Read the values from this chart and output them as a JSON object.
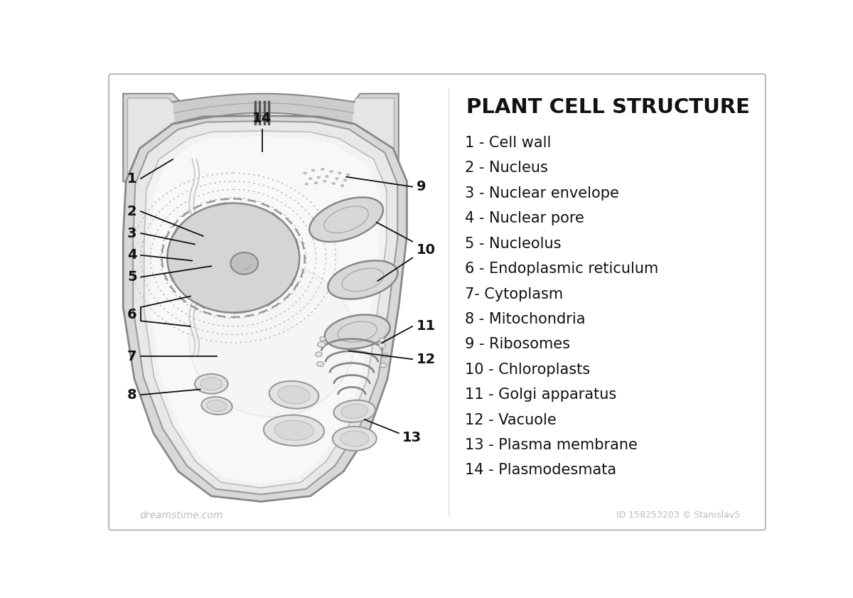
{
  "title": "PLANT CELL STRUCTURE",
  "bg_color": "#ffffff",
  "legend": [
    "1 - Cell wall",
    "2 - Nucleus",
    "3 - Nuclear envelope",
    "4 - Nuclear pore",
    "5 - Nucleolus",
    "6 - Endoplasmic reticulum",
    "7- Cytoplasm",
    "8 - Mitochondria",
    "9 - Ribosomes",
    "10 - Chloroplasts",
    "11 - Golgi apparatus",
    "12 - Vacuole",
    "13 - Plasma membrane",
    "14 - Plasmodesmata"
  ],
  "watermark_left": "dreamstime.com",
  "watermark_right": "ID 158253203 © Stanislav5",
  "title_fontsize": 21,
  "legend_fontsize": 15,
  "number_fontsize": 14,
  "cell_gray": "#d8d8d8",
  "cell_light": "#eeeeee",
  "cell_white": "#f8f8f8",
  "nucleus_gray": "#c8c8c8",
  "line_color": "#222222",
  "organelle_stroke": "#888888",
  "organelle_fill": "#e8e8e8"
}
